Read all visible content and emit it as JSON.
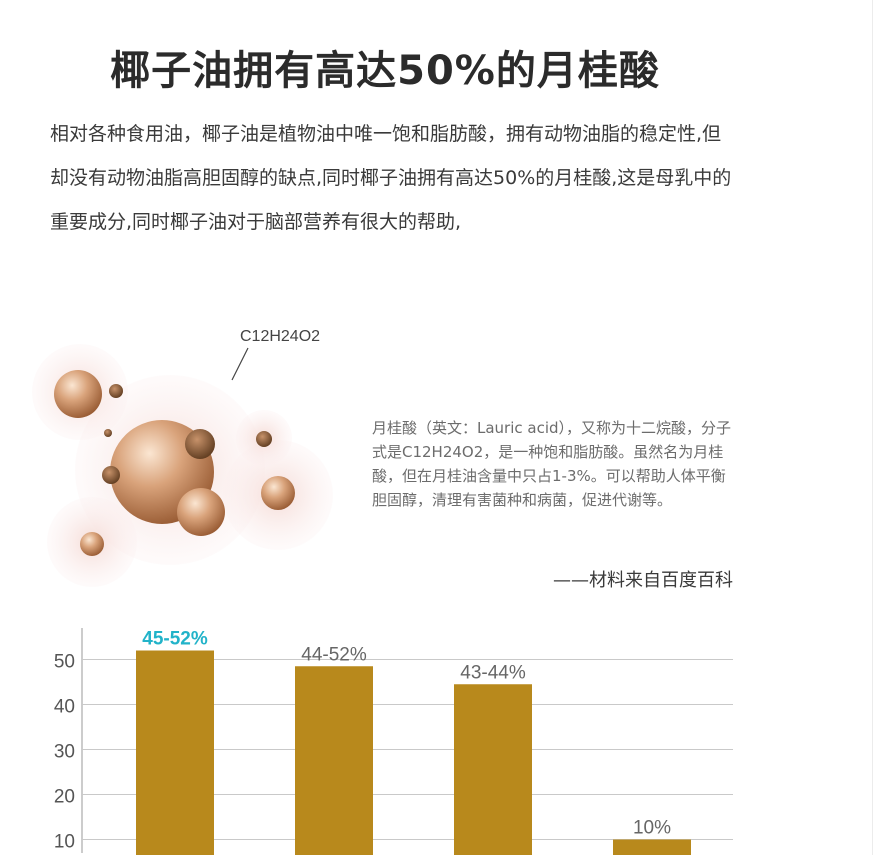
{
  "title": "椰子油拥有高达50%的月桂酸",
  "intro": "相对各种食用油，椰子油是植物油中唯一饱和脂肪酸，拥有动物油脂的稳定性,但却没有动物油脂高胆固醇的缺点,同时椰子油拥有高达50%的月桂酸,这是母乳中的重要成分,同时椰子油对于脑部营养有很大的帮助,",
  "formula": "C12H24O2",
  "description": "月桂酸（英文：Lauric acid），又称为十二烷酸，分子式是C12H24O2，是一种饱和脂肪酸。虽然名为月桂酸，但在月桂油含量中只占1-3%。可以帮助人体平衡胆固醇，清理有害菌种和病菌，促进代谢等。",
  "source": "——材料来自百度百科",
  "colors": {
    "bar": "#b8891c",
    "highlight_label": "#22b3c9",
    "label": "#666666",
    "grid": "#c9c9c9"
  },
  "chart_data": {
    "type": "bar",
    "categories": [
      "",
      "",
      "",
      ""
    ],
    "values": [
      52,
      48.5,
      44.5,
      10
    ],
    "data_labels": [
      "45-52%",
      "44-52%",
      "43-44%",
      "10%"
    ],
    "highlight_index": 0,
    "yticks": [
      10,
      20,
      30,
      40,
      50
    ],
    "ylim": [
      7,
      57
    ],
    "grid": true,
    "title": "",
    "xlabel": "",
    "ylabel": ""
  }
}
